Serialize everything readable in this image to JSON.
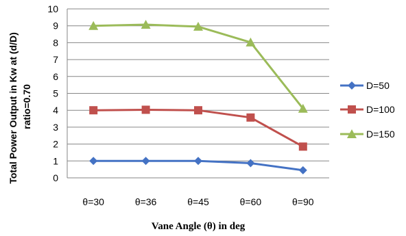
{
  "chart_data": {
    "type": "line",
    "categories": [
      "θ=30",
      "θ=36",
      "θ=45",
      "θ=60",
      "θ=90"
    ],
    "series": [
      {
        "name": "D=50",
        "values": [
          1.0,
          1.0,
          1.0,
          0.87,
          0.45
        ],
        "color": "#4472C4",
        "marker": "diamond"
      },
      {
        "name": "D=100",
        "values": [
          4.0,
          4.03,
          4.0,
          3.57,
          1.85
        ],
        "color": "#C0504D",
        "marker": "square"
      },
      {
        "name": "D=150",
        "values": [
          9.0,
          9.07,
          8.95,
          8.02,
          4.1
        ],
        "color": "#9BBB59",
        "marker": "triangle"
      }
    ],
    "ylim": [
      0,
      10
    ],
    "yticks": [
      0,
      1,
      2,
      3,
      4,
      5,
      6,
      7,
      8,
      9,
      10
    ],
    "ylabel_line1": "Total Power Output in Kw at (d/D)",
    "ylabel_line2": "ratio=0.70",
    "xlabel": "Vane Angle (θ) in deg",
    "grid": "horizontal",
    "legend_position": "right"
  }
}
